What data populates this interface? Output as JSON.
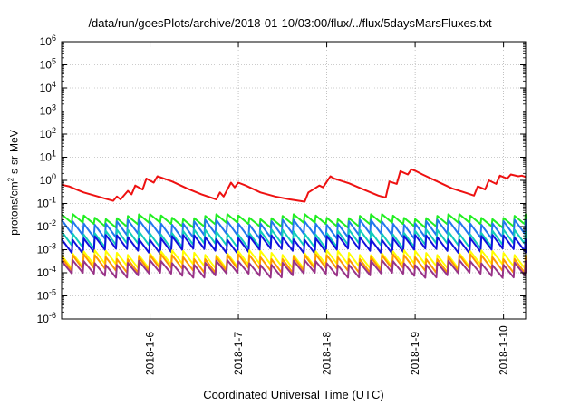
{
  "chart_data": {
    "type": "line",
    "title": "/data/run/goesPlots/archive/2018-01-10/03:00/flux/../flux/5daysMarsFluxes.txt",
    "xlabel": "Coordinated Universal Time (UTC)",
    "ylabel": {
      "prefix": "protons/cm",
      "sup": "2",
      "suffix": "-s-sr-MeV"
    },
    "x_ticks": [
      "2018-1-6",
      "2018-1-7",
      "2018-1-8",
      "2018-1-9",
      "2018-1-10"
    ],
    "xlim": [
      "2018-01-05",
      "2018-01-10 06:00"
    ],
    "y_ticks": [
      {
        "base": "10",
        "exp": "-6"
      },
      {
        "base": "10",
        "exp": "-5"
      },
      {
        "base": "10",
        "exp": "-4"
      },
      {
        "base": "10",
        "exp": "-3"
      },
      {
        "base": "10",
        "exp": "-2"
      },
      {
        "base": "10",
        "exp": "-1"
      },
      {
        "base": "10",
        "exp": "0"
      },
      {
        "base": "10",
        "exp": "1"
      },
      {
        "base": "10",
        "exp": "2"
      },
      {
        "base": "10",
        "exp": "3"
      },
      {
        "base": "10",
        "exp": "4"
      },
      {
        "base": "10",
        "exp": "5"
      },
      {
        "base": "10",
        "exp": "6"
      }
    ],
    "ylim": [
      1e-06,
      1000000.0
    ],
    "y_scale": "log",
    "grid": true,
    "legend": "none",
    "series": [
      {
        "color": "#ee1111",
        "x": [
          "2018-01-05 00:00",
          "2018-01-05 02:00",
          "2018-01-05 04:00",
          "2018-01-05 06:00",
          "2018-01-05 09:00",
          "2018-01-05 12:00",
          "2018-01-05 14:00",
          "2018-01-05 15:00",
          "2018-01-05 16:00",
          "2018-01-05 18:00",
          "2018-01-05 19:00",
          "2018-01-05 20:00",
          "2018-01-05 22:00",
          "2018-01-05 23:00",
          "2018-01-06 01:00",
          "2018-01-06 02:00",
          "2018-01-06 06:00",
          "2018-01-06 10:00",
          "2018-01-06 14:00",
          "2018-01-06 18:00",
          "2018-01-06 19:00",
          "2018-01-06 20:00",
          "2018-01-06 22:00",
          "2018-01-06 23:00",
          "2018-01-07 00:00",
          "2018-01-07 02:00",
          "2018-01-07 06:00",
          "2018-01-07 10:00",
          "2018-01-07 14:00",
          "2018-01-07 18:00",
          "2018-01-07 19:00",
          "2018-01-07 22:00",
          "2018-01-07 23:00",
          "2018-01-08 01:00",
          "2018-01-08 02:00",
          "2018-01-08 06:00",
          "2018-01-08 10:00",
          "2018-01-08 14:00",
          "2018-01-08 16:00",
          "2018-01-08 17:00",
          "2018-01-08 19:00",
          "2018-01-08 20:00",
          "2018-01-08 22:00",
          "2018-01-08 23:00",
          "2018-01-09 00:00",
          "2018-01-09 02:00",
          "2018-01-09 06:00",
          "2018-01-09 10:00",
          "2018-01-09 14:00",
          "2018-01-09 16:00",
          "2018-01-09 17:00",
          "2018-01-09 19:00",
          "2018-01-09 20:00",
          "2018-01-09 22:00",
          "2018-01-09 23:00",
          "2018-01-10 01:00",
          "2018-01-10 02:00",
          "2018-01-10 04:00",
          "2018-01-10 05:00",
          "2018-01-10 06:00"
        ],
        "y": [
          0.65,
          0.55,
          0.4,
          0.3,
          0.22,
          0.16,
          0.13,
          0.2,
          0.15,
          0.35,
          0.25,
          0.6,
          0.4,
          1.2,
          0.8,
          1.5,
          0.9,
          0.45,
          0.25,
          0.15,
          0.3,
          0.2,
          0.8,
          0.5,
          0.8,
          0.6,
          0.3,
          0.2,
          0.15,
          0.12,
          0.3,
          0.6,
          0.5,
          1.5,
          1.2,
          0.75,
          0.4,
          0.22,
          0.18,
          0.9,
          0.7,
          2.5,
          1.8,
          3.0,
          2.6,
          1.8,
          0.9,
          0.45,
          0.28,
          0.22,
          0.55,
          0.4,
          1.0,
          0.7,
          1.6,
          1.2,
          1.8,
          1.5,
          1.6,
          1.4
        ]
      },
      {
        "color": "#22ee22",
        "base": 0.028,
        "trough": 0.012,
        "period_hours": 3,
        "x_start": "2018-01-05 00:00",
        "x_end": "2018-01-10 06:00"
      },
      {
        "color": "#2277ee",
        "base": 0.016,
        "trough": 0.004,
        "period_hours": 3,
        "x_start": "2018-01-05 00:00",
        "x_end": "2018-01-10 06:00"
      },
      {
        "color": "#11ccbb",
        "base": 0.006,
        "trough": 0.0015,
        "period_hours": 3,
        "x_start": "2018-01-05 00:00",
        "x_end": "2018-01-10 06:00"
      },
      {
        "color": "#1111dd",
        "base": 0.0035,
        "trough": 0.0009,
        "period_hours": 3,
        "x_start": "2018-01-05 00:00",
        "x_end": "2018-01-10 06:00"
      },
      {
        "color": "#ffff00",
        "base": 0.00075,
        "trough": 0.0002,
        "period_hours": 3,
        "x_start": "2018-01-05 00:00",
        "x_end": "2018-01-10 06:00"
      },
      {
        "color": "#ff9900",
        "base": 0.0005,
        "trough": 0.00013,
        "period_hours": 3,
        "x_start": "2018-01-05 00:00",
        "x_end": "2018-01-10 06:00"
      },
      {
        "color": "#993388",
        "base": 0.00028,
        "trough": 8e-05,
        "period_hours": 3,
        "x_start": "2018-01-05 00:00",
        "x_end": "2018-01-10 06:00"
      }
    ]
  }
}
